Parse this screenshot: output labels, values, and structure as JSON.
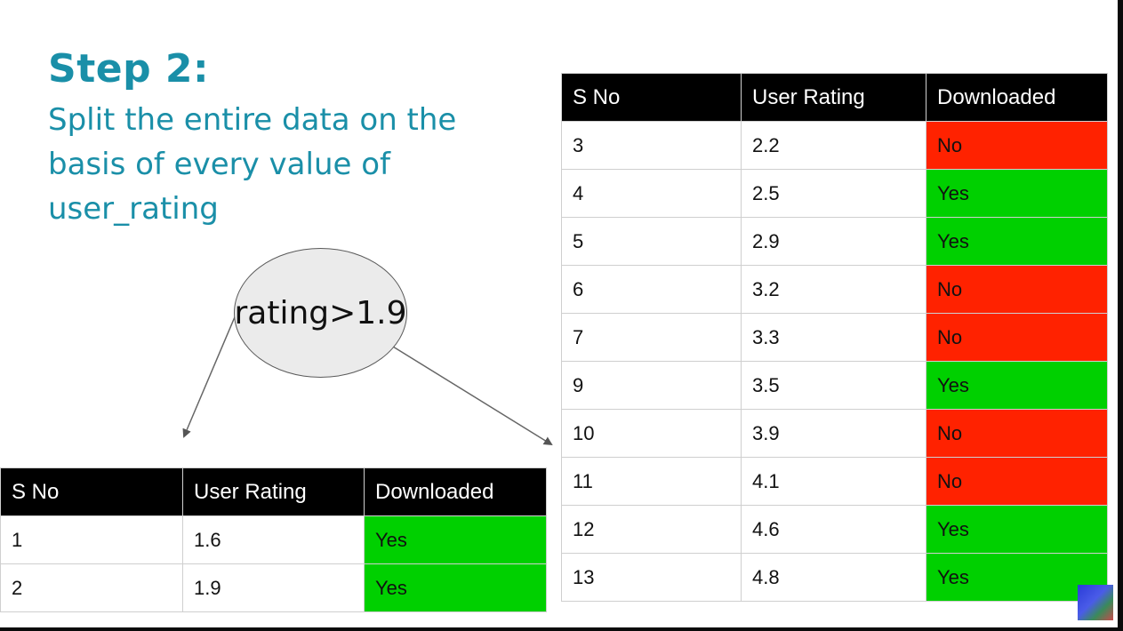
{
  "heading": {
    "title": "Step 2:",
    "description": "Split the entire data on the basis of every value of user_rating"
  },
  "decision_node": {
    "label": "rating>1.9"
  },
  "headers": [
    "S No",
    "User Rating",
    "Downloaded"
  ],
  "colors": {
    "title": "#1a8fa8",
    "header_bg": "#000000",
    "yes": "#00d000",
    "no": "#ff2200"
  },
  "left_table": {
    "rows": [
      {
        "sno": "1",
        "rating": "1.6",
        "downloaded": "Yes"
      },
      {
        "sno": "2",
        "rating": "1.9",
        "downloaded": "Yes"
      }
    ]
  },
  "right_table": {
    "rows": [
      {
        "sno": "3",
        "rating": "2.2",
        "downloaded": "No"
      },
      {
        "sno": "4",
        "rating": "2.5",
        "downloaded": "Yes"
      },
      {
        "sno": "5",
        "rating": "2.9",
        "downloaded": "Yes"
      },
      {
        "sno": "6",
        "rating": "3.2",
        "downloaded": "No"
      },
      {
        "sno": "7",
        "rating": "3.3",
        "downloaded": "No"
      },
      {
        "sno": "9",
        "rating": "3.5",
        "downloaded": "Yes"
      },
      {
        "sno": "10",
        "rating": "3.9",
        "downloaded": "No"
      },
      {
        "sno": "11",
        "rating": "4.1",
        "downloaded": "No"
      },
      {
        "sno": "12",
        "rating": "4.6",
        "downloaded": "Yes"
      },
      {
        "sno": "13",
        "rating": "4.8",
        "downloaded": "Yes"
      }
    ]
  },
  "icons": {
    "corner_logo": "channel-logo-icon"
  }
}
